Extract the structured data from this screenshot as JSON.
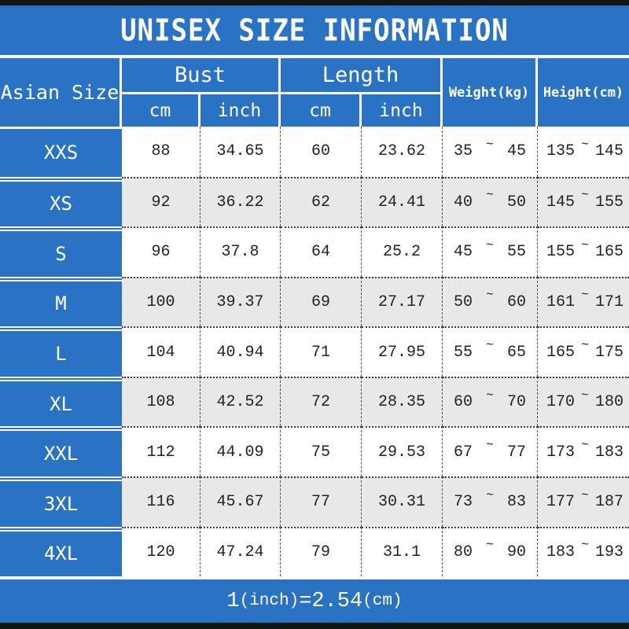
{
  "title": "UNISEX SIZE INFORMATION",
  "header": {
    "size_column": "Asian Size",
    "bust_group": "Bust",
    "length_group": "Length",
    "unit_cm": "cm",
    "unit_inch": "inch",
    "weight_column": "Weight(kg)",
    "height_column": "Height(cm)"
  },
  "tilde": "~",
  "rows": [
    {
      "size": "XXS",
      "bust_cm": "88",
      "bust_inch": "34.65",
      "length_cm": "60",
      "length_inch": "23.62",
      "weight_min": "35",
      "weight_max": "45",
      "height_min": "135",
      "height_max": "145"
    },
    {
      "size": "XS",
      "bust_cm": "92",
      "bust_inch": "36.22",
      "length_cm": "62",
      "length_inch": "24.41",
      "weight_min": "40",
      "weight_max": "50",
      "height_min": "145",
      "height_max": "155"
    },
    {
      "size": "S",
      "bust_cm": "96",
      "bust_inch": "37.8",
      "length_cm": "64",
      "length_inch": "25.2",
      "weight_min": "45",
      "weight_max": "55",
      "height_min": "155",
      "height_max": "165"
    },
    {
      "size": "M",
      "bust_cm": "100",
      "bust_inch": "39.37",
      "length_cm": "69",
      "length_inch": "27.17",
      "weight_min": "50",
      "weight_max": "60",
      "height_min": "161",
      "height_max": "171"
    },
    {
      "size": "L",
      "bust_cm": "104",
      "bust_inch": "40.94",
      "length_cm": "71",
      "length_inch": "27.95",
      "weight_min": "55",
      "weight_max": "65",
      "height_min": "165",
      "height_max": "175"
    },
    {
      "size": "XL",
      "bust_cm": "108",
      "bust_inch": "42.52",
      "length_cm": "72",
      "length_inch": "28.35",
      "weight_min": "60",
      "weight_max": "70",
      "height_min": "170",
      "height_max": "180"
    },
    {
      "size": "XXL",
      "bust_cm": "112",
      "bust_inch": "44.09",
      "length_cm": "75",
      "length_inch": "29.53",
      "weight_min": "67",
      "weight_max": "77",
      "height_min": "173",
      "height_max": "183"
    },
    {
      "size": "3XL",
      "bust_cm": "116",
      "bust_inch": "45.67",
      "length_cm": "77",
      "length_inch": "30.31",
      "weight_min": "73",
      "weight_max": "83",
      "height_min": "177",
      "height_max": "187"
    },
    {
      "size": "4XL",
      "bust_cm": "120",
      "bust_inch": "47.24",
      "length_cm": "79",
      "length_inch": "31.1",
      "weight_min": "80",
      "weight_max": "90",
      "height_min": "183",
      "height_max": "193"
    }
  ],
  "footer": {
    "num1": "1",
    "unit1": "(inch)",
    "equals": "=",
    "num2": "2.54",
    "unit2": "(cm)"
  },
  "colors": {
    "blue": "#2a73c4",
    "alt_row_gray": "#e8e8e8",
    "border_black": "#141414",
    "text_dark": "#222222",
    "text_white": "#ffffff"
  }
}
